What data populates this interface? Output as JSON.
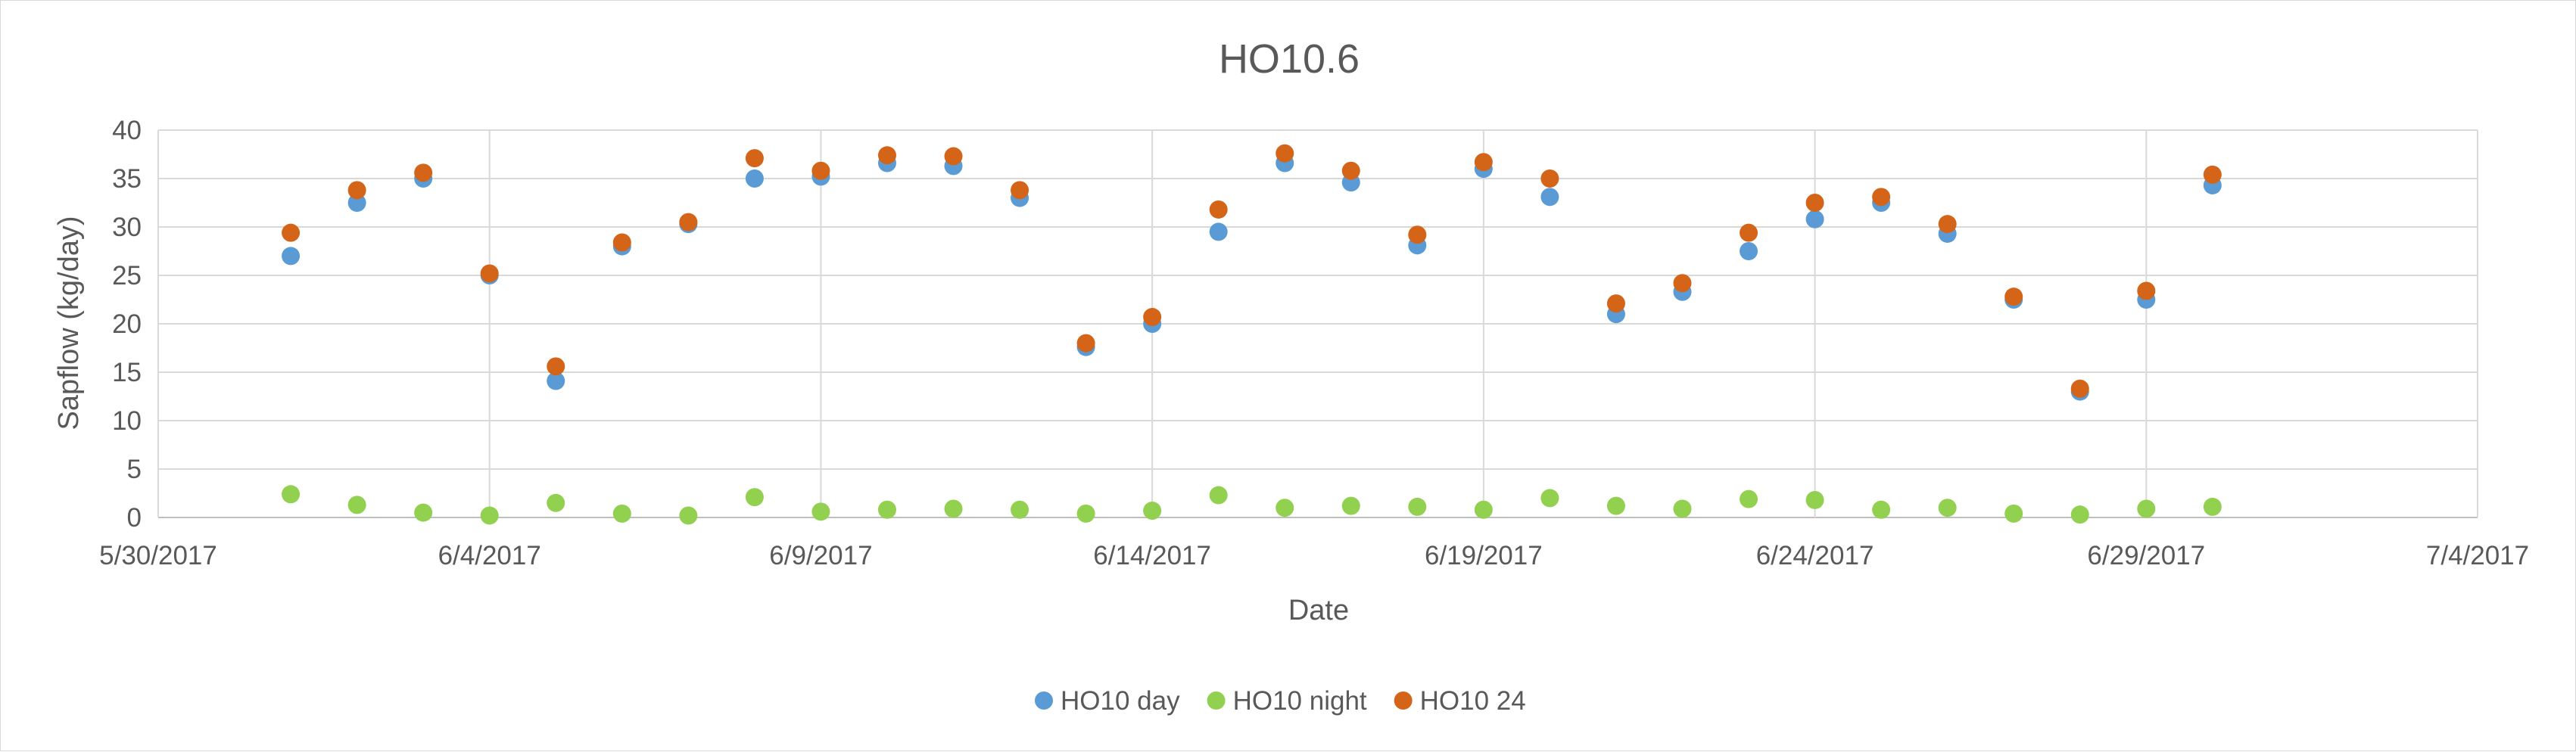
{
  "chart_data": {
    "type": "scatter",
    "title": "HO10.6",
    "xlabel": "Date",
    "ylabel": "Sapflow (kg/day)",
    "x_axis": {
      "type": "date",
      "min": "2017-05-30",
      "max": "2017-07-04",
      "tick_labels": [
        "5/30/2017",
        "6/4/2017",
        "6/9/2017",
        "6/14/2017",
        "6/19/2017",
        "6/24/2017",
        "6/29/2017",
        "7/4/2017"
      ]
    },
    "ylim": [
      0,
      40
    ],
    "y_tick_labels": [
      "0",
      "5",
      "10",
      "15",
      "20",
      "25",
      "30",
      "35",
      "40"
    ],
    "grid": true,
    "legend_position": "bottom",
    "x": [
      "2017-06-01",
      "2017-06-02",
      "2017-06-03",
      "2017-06-04",
      "2017-06-05",
      "2017-06-06",
      "2017-06-07",
      "2017-06-08",
      "2017-06-09",
      "2017-06-10",
      "2017-06-11",
      "2017-06-12",
      "2017-06-13",
      "2017-06-14",
      "2017-06-15",
      "2017-06-16",
      "2017-06-17",
      "2017-06-18",
      "2017-06-19",
      "2017-06-20",
      "2017-06-21",
      "2017-06-22",
      "2017-06-23",
      "2017-06-24",
      "2017-06-25",
      "2017-06-26",
      "2017-06-27",
      "2017-06-28",
      "2017-06-29",
      "2017-06-30"
    ],
    "series": [
      {
        "name": "HO10 day",
        "color": "#5b9bd5",
        "values": [
          27.0,
          32.5,
          35.0,
          25.0,
          14.1,
          28.0,
          30.3,
          35.0,
          35.2,
          36.6,
          36.3,
          33.0,
          17.6,
          20.0,
          29.5,
          36.6,
          34.6,
          28.1,
          36.0,
          33.1,
          21.0,
          23.3,
          27.5,
          30.8,
          32.5,
          29.3,
          22.5,
          13.0,
          22.5,
          34.3
        ]
      },
      {
        "name": "HO10 night",
        "color": "#92d050",
        "values": [
          2.4,
          1.3,
          0.5,
          0.2,
          1.5,
          0.4,
          0.2,
          2.1,
          0.6,
          0.8,
          0.9,
          0.8,
          0.4,
          0.7,
          2.3,
          1.0,
          1.2,
          1.1,
          0.8,
          2.0,
          1.2,
          0.9,
          1.9,
          1.8,
          0.8,
          1.0,
          0.4,
          0.3,
          0.9,
          1.1
        ]
      },
      {
        "name": "HO10 24",
        "color": "#d46418",
        "values": [
          29.4,
          33.8,
          35.6,
          25.2,
          15.6,
          28.4,
          30.5,
          37.1,
          35.8,
          37.4,
          37.3,
          33.8,
          18.0,
          20.7,
          31.8,
          37.6,
          35.8,
          29.2,
          36.7,
          35.0,
          22.1,
          24.2,
          29.4,
          32.5,
          33.1,
          30.3,
          22.8,
          13.3,
          23.4,
          35.4
        ]
      }
    ]
  }
}
